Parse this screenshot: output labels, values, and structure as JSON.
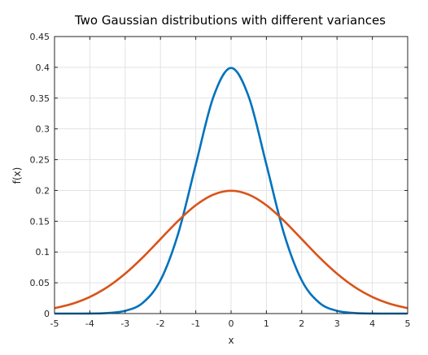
{
  "chart_data": {
    "type": "line",
    "title": "Two Gaussian distributions with different variances",
    "xlabel": "x",
    "ylabel": "f(x)",
    "xlim": [
      -5,
      5
    ],
    "ylim": [
      0,
      0.45
    ],
    "xticks": [
      "-5",
      "-4",
      "-3",
      "-2",
      "-1",
      "0",
      "1",
      "2",
      "3",
      "4",
      "5"
    ],
    "yticks": [
      "0",
      "0.05",
      "0.1",
      "0.15",
      "0.2",
      "0.25",
      "0.3",
      "0.35",
      "0.4",
      "0.45"
    ],
    "grid": true,
    "series": [
      {
        "color": "#0072BD",
        "x": [
          -5,
          -4.5,
          -4,
          -3.5,
          -3,
          -2.5,
          -2,
          -1.5,
          -1,
          -0.5,
          0,
          0.5,
          1,
          1.5,
          2,
          2.5,
          3,
          3.5,
          4,
          4.5,
          5
        ],
        "y": [
          0.0,
          0.0,
          0.0001,
          0.0009,
          0.0044,
          0.0175,
          0.054,
          0.1295,
          0.242,
          0.3521,
          0.3989,
          0.3521,
          0.242,
          0.1295,
          0.054,
          0.0175,
          0.0044,
          0.0009,
          0.0001,
          0.0,
          0.0
        ]
      },
      {
        "color": "#D95319",
        "x": [
          -5,
          -4.5,
          -4,
          -3.5,
          -3,
          -2.5,
          -2,
          -1.5,
          -1,
          -0.5,
          0,
          0.5,
          1,
          1.5,
          2,
          2.5,
          3,
          3.5,
          4,
          4.5,
          5
        ],
        "y": [
          0.0088,
          0.0159,
          0.027,
          0.0431,
          0.0648,
          0.0913,
          0.121,
          0.1506,
          0.176,
          0.1933,
          0.1995,
          0.1933,
          0.176,
          0.1506,
          0.121,
          0.0913,
          0.0648,
          0.0431,
          0.027,
          0.0159,
          0.0088
        ]
      }
    ]
  }
}
